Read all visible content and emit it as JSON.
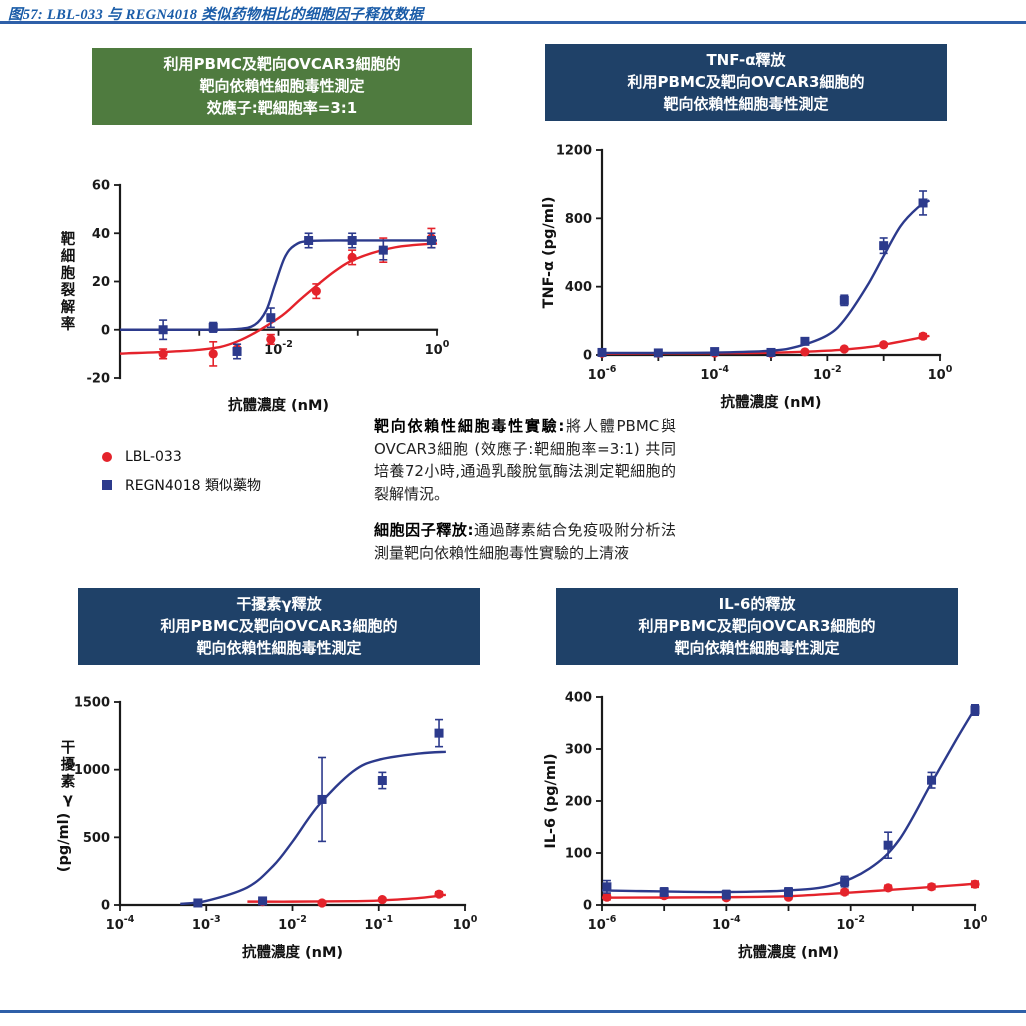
{
  "page": {
    "title": "图57: LBL-033 与 REGN4018 类似药物相比的细胞因子释放数据",
    "colors": {
      "title_blue": "#1A5CA8",
      "rule_blue": "#2E5FA8",
      "header_green": "#4F7B3F",
      "header_navy": "#1F4168",
      "red": "#E4232B",
      "blue": "#2C3A8C"
    }
  },
  "legend": {
    "items": [
      {
        "label": "LBL-033",
        "marker": "circle",
        "color": "red"
      },
      {
        "label": "REGN4018 類似藥物",
        "marker": "square",
        "color": "blue"
      }
    ]
  },
  "notes": {
    "para1_lead": "靶向依賴性細胞毒性實驗:",
    "para1_text": "將人體PBMC與OVCAR3細胞 (效應子:靶細胞率=3:1) 共同培養72小時,通過乳酸脫氫酶法測定靶細胞的裂解情況。",
    "para2_lead": "細胞因子釋放:",
    "para2_text": "通過酵素結合免疫吸附分析法測量靶向依賴性細胞毒性實驗的上清液"
  },
  "chart_data": [
    {
      "id": "cytotoxicity",
      "type": "scatter",
      "header": {
        "style": "green",
        "lines": [
          "利用PBMC及靶向OVCAR3細胞的",
          "靶向依賴性細胞毒性測定",
          "效應子:靶細胞率=3:1"
        ]
      },
      "xlabel": "抗體濃度 (nM)",
      "ylabel": "靶細胞裂解率",
      "ylabel_mode": "upright",
      "x_scale": "log",
      "xlog_range": [
        -4,
        0
      ],
      "xticks": [
        {
          "exp": -4,
          "labeled": false
        },
        {
          "exp": -3,
          "labeled": false
        },
        {
          "exp": -2,
          "labeled": true
        },
        {
          "exp": -1,
          "labeled": false
        },
        {
          "exp": 0,
          "labeled": true
        }
      ],
      "ylim": [
        -20,
        60
      ],
      "yticks": [
        -20,
        0,
        20,
        40,
        60
      ],
      "xaxis_at_y": 0,
      "series": [
        {
          "name": "LBL-033",
          "color": "red",
          "marker": "circle",
          "points": [
            [
              0.00035,
              -10,
              2
            ],
            [
              0.0015,
              -10,
              5
            ],
            [
              0.003,
              -8,
              2
            ],
            [
              0.008,
              -4,
              2
            ],
            [
              0.03,
              16,
              3
            ],
            [
              0.085,
              30,
              3
            ],
            [
              0.21,
              33,
              5
            ],
            [
              0.85,
              38,
              4
            ]
          ],
          "curve": [
            [
              0.0001,
              -9.9
            ],
            [
              0.001,
              -8.3
            ],
            [
              0.003,
              -4.9
            ],
            [
              0.01,
              4.8
            ],
            [
              0.02,
              13.3
            ],
            [
              0.05,
              24
            ],
            [
              0.1,
              29.7
            ],
            [
              0.3,
              34.2
            ],
            [
              1,
              35.8
            ]
          ]
        },
        {
          "name": "REGN4018 類似藥物",
          "color": "blue",
          "marker": "square",
          "points": [
            [
              0.00035,
              0,
              4
            ],
            [
              0.0015,
              1,
              2
            ],
            [
              0.003,
              -9,
              3
            ],
            [
              0.008,
              5,
              4
            ],
            [
              0.024,
              37,
              3
            ],
            [
              0.085,
              37,
              3
            ],
            [
              0.21,
              33,
              4
            ],
            [
              0.85,
              37,
              3
            ]
          ],
          "curve": [
            [
              0.0001,
              0
            ],
            [
              0.001,
              0
            ],
            [
              0.003,
              0.3
            ],
            [
              0.005,
              2
            ],
            [
              0.007,
              8
            ],
            [
              0.009,
              18.5
            ],
            [
              0.012,
              30
            ],
            [
              0.016,
              35
            ],
            [
              0.025,
              36.8
            ],
            [
              0.1,
              37
            ],
            [
              1,
              37
            ]
          ]
        }
      ]
    },
    {
      "id": "tnf-alpha-release",
      "type": "scatter",
      "header": {
        "style": "navy",
        "lines": [
          "TNF-α釋放",
          "利用PBMC及靶向OVCAR3細胞的",
          "靶向依賴性細胞毒性測定"
        ]
      },
      "xlabel": "抗體濃度 (nM)",
      "ylabel": "TNF-α (pg/ml)",
      "ylabel_mode": "rotated",
      "x_scale": "log",
      "xlog_range": [
        -6,
        0
      ],
      "xticks": [
        {
          "exp": -6,
          "labeled": true
        },
        {
          "exp": -5,
          "labeled": false
        },
        {
          "exp": -4,
          "labeled": true
        },
        {
          "exp": -3,
          "labeled": false
        },
        {
          "exp": -2,
          "labeled": true
        },
        {
          "exp": -1,
          "labeled": false
        },
        {
          "exp": 0,
          "labeled": true
        }
      ],
      "ylim": [
        0,
        1200
      ],
      "yticks": [
        0,
        400,
        800,
        1200
      ],
      "series": [
        {
          "name": "LBL-033",
          "color": "red",
          "marker": "circle",
          "points": [
            [
              1e-06,
              10,
              6
            ],
            [
              1e-05,
              10,
              5
            ],
            [
              0.0001,
              12,
              6
            ],
            [
              0.001,
              10,
              5
            ],
            [
              0.004,
              18,
              6
            ],
            [
              0.02,
              35,
              8
            ],
            [
              0.1,
              60,
              10
            ],
            [
              0.5,
              110,
              15
            ]
          ],
          "curve": [
            [
              1e-06,
              8
            ],
            [
              1e-05,
              9
            ],
            [
              0.0001,
              10
            ],
            [
              0.001,
              13
            ],
            [
              0.01,
              25
            ],
            [
              0.05,
              45
            ],
            [
              0.1,
              60
            ],
            [
              0.3,
              90
            ],
            [
              0.65,
              112
            ]
          ]
        },
        {
          "name": "REGN4018 類似藥物",
          "color": "blue",
          "marker": "square",
          "points": [
            [
              1e-06,
              15,
              8
            ],
            [
              1e-05,
              12,
              6
            ],
            [
              0.0001,
              20,
              10
            ],
            [
              0.001,
              15,
              8
            ],
            [
              0.004,
              80,
              20
            ],
            [
              0.02,
              320,
              30
            ],
            [
              0.1,
              640,
              45
            ],
            [
              0.5,
              890,
              70
            ]
          ],
          "curve": [
            [
              1e-06,
              12
            ],
            [
              1e-05,
              12
            ],
            [
              0.0001,
              14
            ],
            [
              0.001,
              25
            ],
            [
              0.003,
              50
            ],
            [
              0.01,
              115
            ],
            [
              0.02,
              205
            ],
            [
              0.05,
              400
            ],
            [
              0.1,
              580
            ],
            [
              0.2,
              755
            ],
            [
              0.4,
              862
            ],
            [
              0.65,
              905
            ]
          ]
        }
      ]
    },
    {
      "id": "ifn-gamma-release",
      "type": "scatter",
      "header": {
        "style": "navy",
        "lines": [
          "干擾素γ釋放",
          "利用PBMC及靶向OVCAR3細胞的",
          "靶向依賴性細胞毒性測定"
        ]
      },
      "xlabel": "抗體濃度 (nM)",
      "ylabel": "干擾素γ (pg/ml)",
      "ylabel_mode": "mixed",
      "x_scale": "log",
      "xlog_range": [
        -4,
        0
      ],
      "xticks": [
        {
          "exp": -4,
          "labeled": true
        },
        {
          "exp": -3,
          "labeled": true
        },
        {
          "exp": -2,
          "labeled": true
        },
        {
          "exp": -1,
          "labeled": true
        },
        {
          "exp": 0,
          "labeled": true
        }
      ],
      "ylim": [
        0,
        1500
      ],
      "yticks": [
        0,
        500,
        1000,
        1500
      ],
      "series": [
        {
          "name": "LBL-033",
          "color": "red",
          "marker": "circle",
          "points": [
            [
              0.0045,
              25,
              12
            ],
            [
              0.022,
              15,
              8
            ],
            [
              0.11,
              40,
              12
            ],
            [
              0.5,
              80,
              18
            ]
          ],
          "curve": [
            [
              0.003,
              25
            ],
            [
              0.01,
              25
            ],
            [
              0.05,
              28
            ],
            [
              0.1,
              33
            ],
            [
              0.3,
              52
            ],
            [
              0.6,
              75
            ]
          ]
        },
        {
          "name": "REGN4018 類似藥物",
          "color": "blue",
          "marker": "square",
          "points": [
            [
              0.0008,
              15,
              25
            ],
            [
              0.0045,
              30,
              20
            ],
            [
              0.022,
              780,
              310
            ],
            [
              0.11,
              920,
              60
            ],
            [
              0.5,
              1270,
              100
            ]
          ],
          "curve": [
            [
              0.0005,
              8
            ],
            [
              0.001,
              30
            ],
            [
              0.003,
              130
            ],
            [
              0.006,
              290
            ],
            [
              0.01,
              468
            ],
            [
              0.02,
              735
            ],
            [
              0.05,
              986
            ],
            [
              0.1,
              1073
            ],
            [
              0.3,
              1120
            ],
            [
              0.6,
              1132
            ]
          ]
        }
      ]
    },
    {
      "id": "il6-release",
      "type": "scatter",
      "header": {
        "style": "navy",
        "lines": [
          "IL-6的釋放",
          "利用PBMC及靶向OVCAR3細胞的",
          "靶向依賴性細胞毒性測定"
        ]
      },
      "xlabel": "抗體濃度 (nM)",
      "ylabel": "IL-6 (pg/ml)",
      "ylabel_mode": "rotated",
      "x_scale": "log",
      "xlog_range": [
        -6,
        0
      ],
      "xticks": [
        {
          "exp": -6,
          "labeled": true
        },
        {
          "exp": -5,
          "labeled": false
        },
        {
          "exp": -4,
          "labeled": true
        },
        {
          "exp": -3,
          "labeled": false
        },
        {
          "exp": -2,
          "labeled": true
        },
        {
          "exp": -1,
          "labeled": false
        },
        {
          "exp": 0,
          "labeled": true
        }
      ],
      "ylim": [
        0,
        400
      ],
      "yticks": [
        0,
        100,
        200,
        300,
        400
      ],
      "series": [
        {
          "name": "LBL-033",
          "color": "red",
          "marker": "circle",
          "points": [
            [
              1.2e-06,
              15,
              5
            ],
            [
              1e-05,
              18,
              5
            ],
            [
              0.0001,
              14,
              4
            ],
            [
              0.001,
              15,
              4
            ],
            [
              0.008,
              25,
              5
            ],
            [
              0.04,
              33,
              5
            ],
            [
              0.2,
              35,
              5
            ],
            [
              1,
              40,
              6
            ]
          ],
          "curve": [
            [
              1e-06,
              14
            ],
            [
              0.0001,
              15
            ],
            [
              0.001,
              17
            ],
            [
              0.01,
              24
            ],
            [
              0.1,
              32
            ],
            [
              0.5,
              38
            ],
            [
              1,
              41
            ]
          ]
        },
        {
          "name": "REGN4018 類似藥物",
          "color": "blue",
          "marker": "square",
          "points": [
            [
              1.2e-06,
              35,
              12
            ],
            [
              1e-05,
              25,
              8
            ],
            [
              0.0001,
              20,
              8
            ],
            [
              0.001,
              25,
              8
            ],
            [
              0.008,
              45,
              10
            ],
            [
              0.04,
              115,
              25
            ],
            [
              0.2,
              240,
              15
            ],
            [
              1,
              375,
              10
            ]
          ],
          "curve": [
            [
              1e-06,
              28
            ],
            [
              1e-05,
              26
            ],
            [
              0.0001,
              25
            ],
            [
              0.001,
              28
            ],
            [
              0.005,
              38
            ],
            [
              0.02,
              70
            ],
            [
              0.06,
              125
            ],
            [
              0.2,
              235
            ],
            [
              0.5,
              318
            ],
            [
              1,
              378
            ]
          ]
        }
      ]
    }
  ]
}
